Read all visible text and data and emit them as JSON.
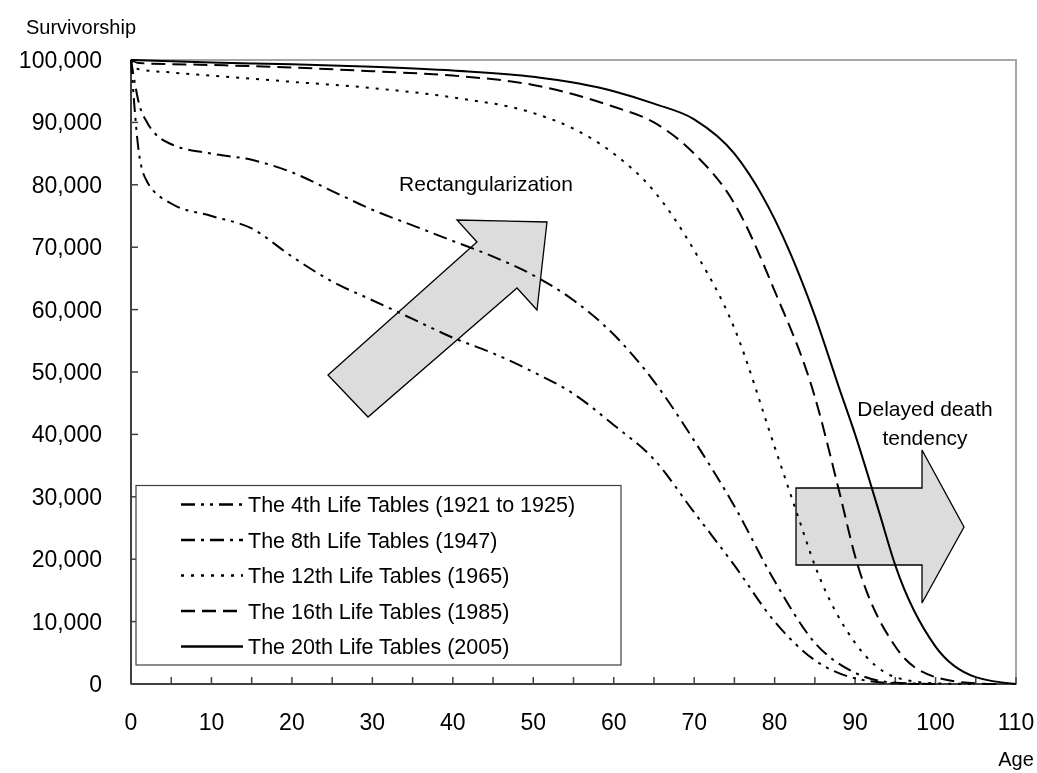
{
  "chart_data": {
    "type": "line",
    "xlabel": "Age",
    "ylabel": "Survivorship",
    "xlim": [
      0,
      110
    ],
    "xticks": [
      0,
      {
        "value": 5,
        "label": null
      },
      10,
      {
        "value": 15,
        "label": null
      },
      20,
      {
        "value": 25,
        "label": null
      },
      30,
      {
        "value": 35,
        "label": null
      },
      40,
      {
        "value": 45,
        "label": null
      },
      50,
      {
        "value": 55,
        "label": null
      },
      60,
      {
        "value": 65,
        "label": null
      },
      70,
      {
        "value": 75,
        "label": null
      },
      80,
      {
        "value": 85,
        "label": null
      },
      90,
      {
        "value": 95,
        "label": null
      },
      100,
      {
        "value": 105,
        "label": null
      },
      110
    ],
    "ylim": [
      0,
      100000
    ],
    "yticks": [
      0,
      {
        "value": 10000,
        "label": "10,000"
      },
      {
        "value": 20000,
        "label": "20,000"
      },
      {
        "value": 30000,
        "label": "30,000"
      },
      {
        "value": 40000,
        "label": "40,000"
      },
      {
        "value": 50000,
        "label": "50,000"
      },
      {
        "value": 60000,
        "label": "60,000"
      },
      {
        "value": 70000,
        "label": "70,000"
      },
      {
        "value": 80000,
        "label": "80,000"
      },
      {
        "value": 90000,
        "label": "90,000"
      },
      {
        "value": 100000,
        "label": "100,000"
      }
    ],
    "grid": false,
    "legend": "bottom left",
    "marker": "none",
    "annotations": [
      "Rectangularization",
      "Delayed death tendency"
    ],
    "series": [
      {
        "name": "The 4th Life Tables (1921 to 1925)",
        "color": "#000000",
        "line_style": "dashdotdot",
        "x": [
          0,
          1,
          2,
          5,
          10,
          15,
          20,
          25,
          30,
          35,
          40,
          45,
          50,
          55,
          60,
          65,
          70,
          75,
          80,
          85,
          90,
          95,
          98
        ],
        "values": [
          100000,
          85000,
          80500,
          77000,
          75000,
          73000,
          68500,
          64500,
          61500,
          58500,
          55500,
          53000,
          50000,
          46500,
          41500,
          36000,
          27500,
          19000,
          10000,
          3800,
          900,
          100,
          0
        ]
      },
      {
        "name": "The 8th Life Tables (1947)",
        "color": "#000000",
        "line_style": "dashdot",
        "x": [
          0,
          1,
          2,
          5,
          10,
          15,
          20,
          25,
          30,
          35,
          40,
          45,
          50,
          55,
          60,
          65,
          70,
          75,
          80,
          85,
          90,
          95,
          100
        ],
        "values": [
          100000,
          93000,
          90000,
          86500,
          85000,
          84000,
          82000,
          79000,
          76000,
          73500,
          71000,
          68500,
          65500,
          61500,
          56000,
          48500,
          39000,
          28500,
          16500,
          6600,
          1800,
          200,
          0
        ]
      },
      {
        "name": "The 12th Life Tables (1965)",
        "color": "#000000",
        "line_style": "dotted",
        "x": [
          0,
          1,
          5,
          10,
          20,
          30,
          40,
          50,
          55,
          60,
          65,
          70,
          75,
          80,
          83,
          85,
          90,
          95,
          100,
          105
        ],
        "values": [
          100000,
          98500,
          98000,
          97500,
          96500,
          95500,
          94000,
          91500,
          89000,
          85000,
          79000,
          69500,
          57000,
          38000,
          26500,
          19000,
          6600,
          1100,
          100,
          0
        ]
      },
      {
        "name": "The 16th Life Tables (1985)",
        "color": "#000000",
        "line_style": "dashed",
        "x": [
          0,
          1,
          10,
          20,
          30,
          40,
          50,
          55,
          60,
          65,
          70,
          75,
          80,
          85,
          88,
          90,
          95,
          100,
          105,
          108
        ],
        "values": [
          100000,
          99500,
          99200,
          98800,
          98200,
          97500,
          96000,
          94500,
          92500,
          90000,
          85000,
          77000,
          63000,
          46000,
          31000,
          20500,
          6000,
          1100,
          100,
          0
        ]
      },
      {
        "name": "The 20th Life Tables (2005)",
        "color": "#000000",
        "line_style": "solid",
        "x": [
          0,
          10,
          20,
          30,
          40,
          50,
          60,
          65,
          70,
          75,
          80,
          85,
          88,
          90,
          93,
          95,
          100,
          105,
          110
        ],
        "values": [
          100000,
          99600,
          99300,
          98900,
          98300,
          97300,
          95000,
          93000,
          90500,
          85000,
          74500,
          59000,
          47500,
          40000,
          27500,
          19000,
          6000,
          1100,
          0
        ]
      }
    ]
  }
}
